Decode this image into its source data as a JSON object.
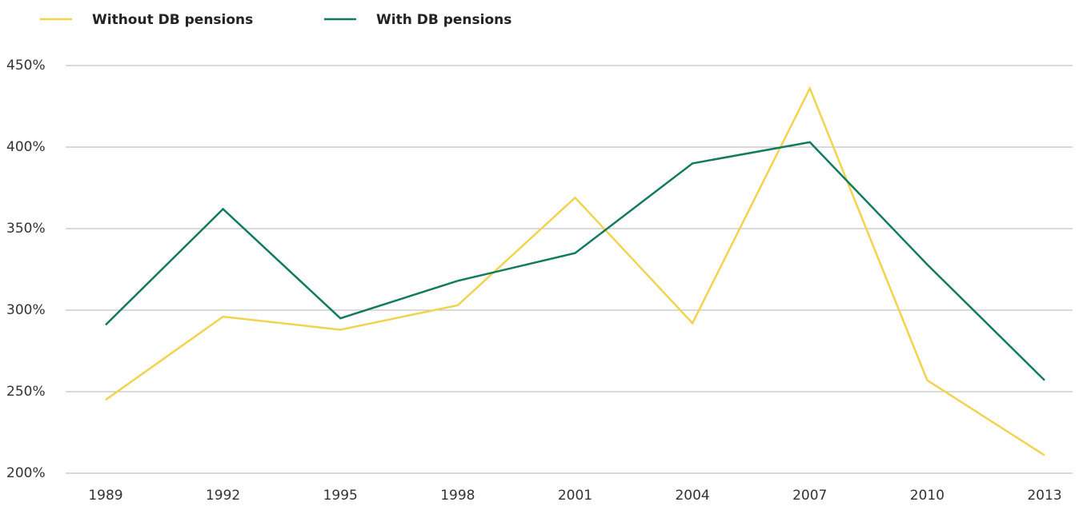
{
  "chart_data": {
    "type": "line",
    "categories": [
      "1989",
      "1992",
      "1995",
      "1998",
      "2001",
      "2004",
      "2007",
      "2010",
      "2013"
    ],
    "series": [
      {
        "name": "Without DB pensions",
        "color": "#f2d34f",
        "values": [
          245,
          296,
          288,
          303,
          369,
          292,
          436,
          257,
          211
        ]
      },
      {
        "name": "With DB pensions",
        "color": "#127a5e",
        "values": [
          291,
          362,
          295,
          318,
          335,
          390,
          403,
          328,
          257
        ]
      }
    ],
    "ylim": [
      200,
      450
    ],
    "yticks": [
      {
        "value": 200,
        "label": "200%"
      },
      {
        "value": 250,
        "label": "250%"
      },
      {
        "value": 300,
        "label": "300%"
      },
      {
        "value": 350,
        "label": "350%"
      },
      {
        "value": 400,
        "label": "400%"
      },
      {
        "value": 450,
        "label": "450%"
      }
    ],
    "grid": true,
    "legend": "top"
  }
}
